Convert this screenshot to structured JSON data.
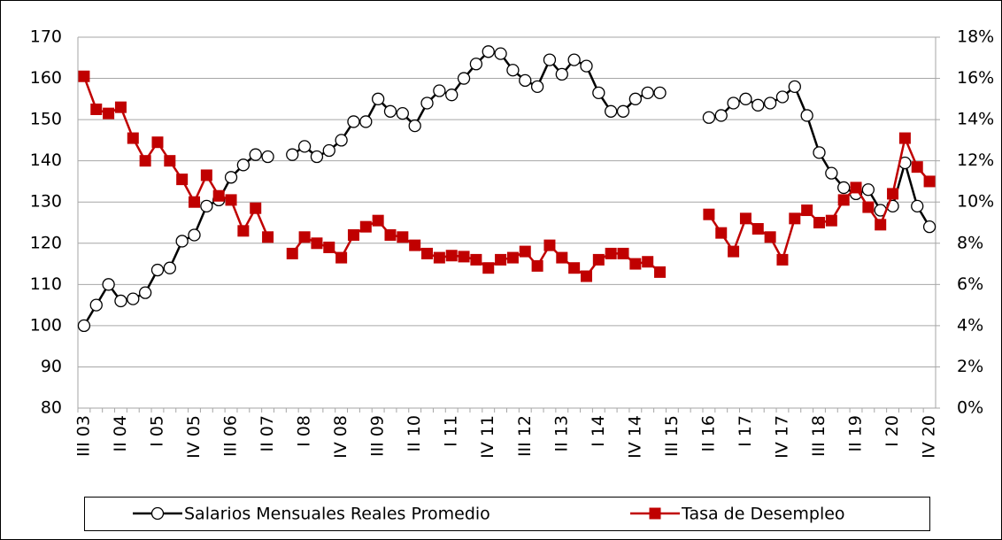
{
  "chart_data": {
    "type": "line",
    "categories": [
      "III 03",
      null,
      null,
      "II 04",
      null,
      null,
      "I 05",
      null,
      null,
      "IV 05",
      null,
      null,
      "III 06",
      null,
      null,
      "II 07",
      null,
      null,
      "I 08",
      null,
      null,
      "IV 08",
      null,
      null,
      "III 09",
      null,
      null,
      "II 10",
      null,
      null,
      "I 11",
      null,
      null,
      "IV 11",
      null,
      null,
      "III 12",
      null,
      null,
      "II 13",
      null,
      null,
      "I 14",
      null,
      null,
      "IV 14",
      null,
      null,
      "III 15",
      null,
      null,
      "II 16",
      null,
      null,
      "I 17",
      null,
      null,
      "IV 17",
      null,
      null,
      "III 18",
      null,
      null,
      "II 19",
      null,
      null,
      "I 20",
      null,
      null,
      "IV 20"
    ],
    "series": [
      {
        "name": "Salarios Mensuales Reales Promedio",
        "color": "#000000",
        "marker": "circle",
        "values": [
          100,
          105,
          110,
          106,
          106.5,
          108,
          113.5,
          114,
          120.5,
          122,
          129,
          130.5,
          136,
          139,
          141.5,
          141,
          null,
          141.5,
          143.5,
          141,
          142.5,
          145,
          149.5,
          149.5,
          155,
          152,
          151.5,
          148.5,
          154,
          157,
          156,
          160,
          163.5,
          166.5,
          166,
          162,
          159.5,
          158,
          164.5,
          161,
          164.5,
          163,
          156.5,
          152,
          152,
          155,
          156.5,
          156.5,
          null,
          null,
          null,
          150.5,
          151,
          154,
          155,
          153.5,
          154,
          155.5,
          158,
          151,
          142,
          137,
          133.5,
          132,
          133,
          128,
          129,
          139.5,
          129,
          124
        ]
      },
      {
        "name": "Tasa de Desempleo",
        "color": "#c00000",
        "marker": "square",
        "axis": "y2",
        "values": [
          16.1,
          14.5,
          14.3,
          14.6,
          13.1,
          12.0,
          12.9,
          12.0,
          11.1,
          10.0,
          11.3,
          10.3,
          10.1,
          8.6,
          9.7,
          8.3,
          null,
          7.5,
          8.3,
          8.0,
          7.8,
          7.3,
          8.4,
          8.8,
          9.1,
          8.4,
          8.3,
          7.9,
          7.5,
          7.3,
          7.4,
          7.35,
          7.2,
          6.8,
          7.2,
          7.3,
          7.6,
          6.9,
          7.9,
          7.3,
          6.8,
          6.4,
          7.2,
          7.5,
          7.5,
          7.0,
          7.1,
          6.6,
          null,
          null,
          null,
          9.4,
          8.5,
          7.6,
          9.2,
          8.7,
          8.3,
          7.2,
          9.2,
          9.6,
          9.0,
          9.1,
          10.1,
          10.7,
          9.75,
          8.9,
          10.4,
          13.1,
          11.7,
          11.0
        ]
      }
    ],
    "ylim": [
      80,
      170
    ],
    "yticks": [
      80,
      90,
      100,
      110,
      120,
      130,
      140,
      150,
      160,
      170
    ],
    "y2lim": [
      0,
      18
    ],
    "y2ticks": [
      {
        "value": 0,
        "label": "0%"
      },
      {
        "value": 2,
        "label": "2%"
      },
      {
        "value": 4,
        "label": "4%"
      },
      {
        "value": 6,
        "label": "6%"
      },
      {
        "value": 8,
        "label": "8%"
      },
      {
        "value": 10,
        "label": "10%"
      },
      {
        "value": 12,
        "label": "12%"
      },
      {
        "value": 14,
        "label": "14%"
      },
      {
        "value": 16,
        "label": "16%"
      },
      {
        "value": 18,
        "label": "18%"
      }
    ],
    "grid": true,
    "legend": "bottom"
  }
}
